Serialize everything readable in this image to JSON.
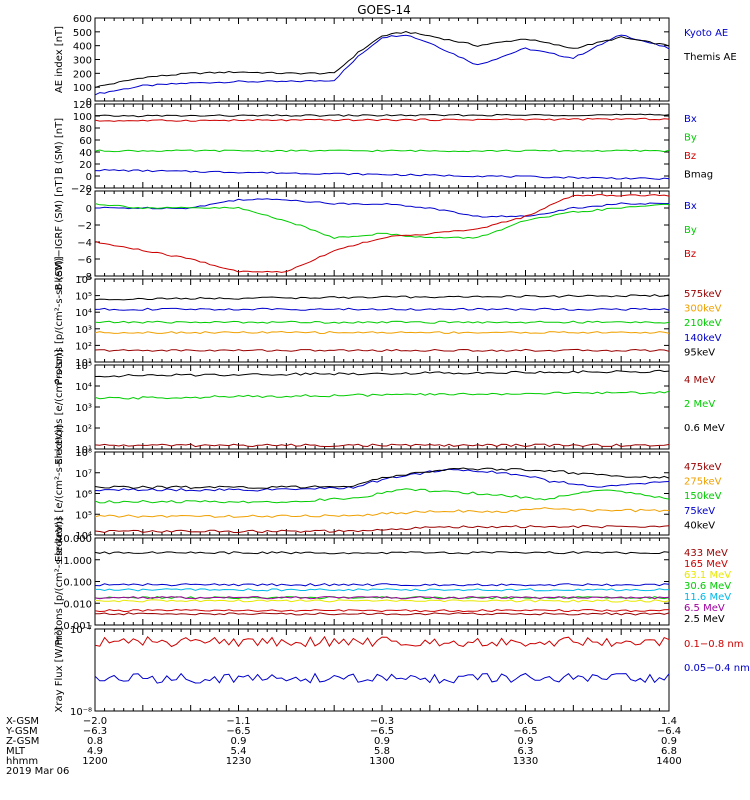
{
  "title": "GOES-14",
  "colors": {
    "black": "#000000",
    "blue": "#0000cc",
    "green": "#00cc00",
    "red": "#cc0000",
    "orange": "#f0a000",
    "yellow": "#e8e800",
    "cyan": "#00b8e8",
    "purple": "#a000a0",
    "darkred": "#990000"
  },
  "chart_data": [
    {
      "type": "line",
      "ylabel": "AE index [nT]",
      "ylim": [
        0,
        600
      ],
      "ytick_labels": [
        "600",
        "500",
        "400",
        "300",
        "200",
        "100",
        "0"
      ],
      "x": [
        0,
        10,
        20,
        30,
        40,
        50,
        55,
        60,
        65,
        70,
        80,
        90,
        100,
        110,
        120
      ],
      "series": [
        {
          "name": "Kyoto AE",
          "color": "blue",
          "values": [
            50,
            110,
            130,
            140,
            140,
            150,
            320,
            460,
            480,
            420,
            260,
            380,
            310,
            480,
            380
          ]
        },
        {
          "name": "Themis AE",
          "color": "black",
          "values": [
            100,
            170,
            200,
            210,
            200,
            200,
            350,
            470,
            500,
            470,
            400,
            450,
            380,
            460,
            400
          ]
        }
      ]
    },
    {
      "type": "line",
      "ylabel": "B (SM) [nT]",
      "ylim": [
        -20,
        120
      ],
      "ytick_labels": [
        "120",
        "100",
        "80",
        "60",
        "40",
        "20",
        "0",
        "−20"
      ],
      "x": [
        0,
        120
      ],
      "series": [
        {
          "name": "Bx",
          "color": "blue",
          "values": [
            10,
            -5
          ]
        },
        {
          "name": "By",
          "color": "green",
          "values": [
            42,
            42
          ]
        },
        {
          "name": "Bz",
          "color": "red",
          "values": [
            92,
            95
          ]
        },
        {
          "name": "Bmag",
          "color": "black",
          "values": [
            100,
            102
          ]
        }
      ]
    },
    {
      "type": "line",
      "ylabel": "B (SM)−IGRF (SM) [nT]",
      "ylim": [
        -8,
        2
      ],
      "ytick_labels": [
        "2",
        "0",
        "−2",
        "−4",
        "−6",
        "−8"
      ],
      "x": [
        0,
        10,
        20,
        30,
        40,
        50,
        60,
        70,
        80,
        90,
        100,
        110,
        120
      ],
      "series": [
        {
          "name": "Bx",
          "color": "blue",
          "values": [
            0,
            0,
            0,
            1,
            1,
            0.5,
            0.5,
            0,
            -1,
            -1,
            0,
            0.5,
            0.5
          ]
        },
        {
          "name": "By",
          "color": "green",
          "values": [
            0.5,
            0,
            0,
            0,
            -1.5,
            -3.5,
            -3,
            -3.5,
            -3.5,
            -1.5,
            -0.5,
            0,
            0.5
          ]
        },
        {
          "name": "Bz",
          "color": "red",
          "values": [
            -4,
            -5,
            -6,
            -7.5,
            -7.5,
            -5,
            -3.5,
            -3,
            -2.5,
            -1,
            1.5,
            1.5,
            1.5
          ]
        }
      ]
    },
    {
      "type": "line",
      "ylabel": "Protons [p/(cm²-s-sr-keV)]",
      "yscale": "log",
      "ylim": [
        10,
        1000000
      ],
      "ytick_labels": [
        "10⁶",
        "10⁵",
        "10⁴",
        "10³",
        "10²",
        "10¹"
      ],
      "x": [
        0,
        120
      ],
      "series": [
        {
          "name": "575keV",
          "color": "darkred",
          "values": [
            50,
            50
          ]
        },
        {
          "name": "300keV",
          "color": "orange",
          "values": [
            600,
            600
          ]
        },
        {
          "name": "210keV",
          "color": "green",
          "values": [
            2500,
            2500
          ]
        },
        {
          "name": "140keV",
          "color": "blue",
          "values": [
            15000,
            15000
          ]
        },
        {
          "name": "95keV",
          "color": "black",
          "values": [
            60000,
            100000
          ]
        }
      ]
    },
    {
      "type": "line",
      "ylabel": "Electrons [e/(cm²-s-sr)]",
      "yscale": "log",
      "ylim": [
        10,
        100000
      ],
      "ytick_labels": [
        "10⁵",
        "10⁴",
        "10³",
        "10²",
        "10¹"
      ],
      "x": [
        0,
        120
      ],
      "series": [
        {
          "name": "4 MeV",
          "color": "darkred",
          "values": [
            15,
            15
          ]
        },
        {
          "name": "2 MeV",
          "color": "green",
          "values": [
            2500,
            5000
          ]
        },
        {
          "name": "0.6 MeV",
          "color": "black",
          "values": [
            30000,
            50000
          ]
        }
      ]
    },
    {
      "type": "line",
      "ylabel": "Electrons [e/(cm²-s-sr-keV)]",
      "yscale": "log",
      "ylim": [
        10000,
        100000000
      ],
      "ytick_labels": [
        "10⁸",
        "10⁷",
        "10⁶",
        "10⁵",
        "10⁴"
      ],
      "x": [
        0,
        20,
        40,
        55,
        65,
        75,
        85,
        95,
        105,
        115,
        120
      ],
      "series": [
        {
          "name": "475keV",
          "color": "darkred",
          "values": [
            15000,
            15000,
            15000,
            15000,
            20000,
            25000,
            25000,
            25000,
            25000,
            25000,
            25000
          ]
        },
        {
          "name": "275keV",
          "color": "orange",
          "values": [
            80000,
            80000,
            80000,
            90000,
            120000,
            150000,
            120000,
            200000,
            150000,
            150000,
            150000
          ]
        },
        {
          "name": "150keV",
          "color": "green",
          "values": [
            400000,
            400000,
            400000,
            600000,
            1500000,
            1200000,
            800000,
            500000,
            1500000,
            800000,
            600000
          ]
        },
        {
          "name": "75keV",
          "color": "blue",
          "values": [
            1500000,
            1500000,
            1500000,
            2000000,
            7000000,
            15000000,
            10000000,
            4000000,
            2000000,
            3000000,
            4000000
          ]
        },
        {
          "name": "40keV",
          "color": "black",
          "values": [
            2000000,
            2000000,
            2000000,
            2500000,
            8000000,
            15000000,
            15000000,
            12000000,
            8000000,
            6000000,
            6000000
          ]
        }
      ]
    },
    {
      "type": "line",
      "ylabel": "Protons [p/(cm²-s-sr-keV)]",
      "yscale": "log",
      "ylim": [
        0.001,
        50
      ],
      "ytick_labels": [
        "10.000",
        "1.000",
        "0.100",
        "0.010",
        "0.001"
      ],
      "x": [
        0,
        120
      ],
      "series": [
        {
          "name": "433 MeV",
          "color": "darkred",
          "values": [
            0.004,
            0.004
          ]
        },
        {
          "name": "165 MeV",
          "color": "red",
          "values": [
            0.006,
            0.006
          ]
        },
        {
          "name": "63.1 MeV",
          "color": "yellow",
          "values": [
            0.02,
            0.02
          ]
        },
        {
          "name": "30.6 MeV",
          "color": "green",
          "values": [
            0.03,
            0.03
          ]
        },
        {
          "name": "11.6 MeV",
          "color": "cyan",
          "values": [
            0.08,
            0.08
          ]
        },
        {
          "name": "6.5 MeV",
          "color": "purple",
          "values": [
            0.03,
            0.03
          ]
        },
        {
          "name": "2.5 MeV",
          "color": "black",
          "values": [
            8,
            8
          ]
        }
      ],
      "extra_series": {
        "color": "blue",
        "values": [
          0.15,
          0.15
        ]
      }
    },
    {
      "type": "line",
      "ylabel": "Xray Flux [W/m²]",
      "yscale": "log",
      "ylim": [
        1e-08,
        1e-07
      ],
      "ytick_labels": [
        "10⁻⁷",
        "10⁻⁸"
      ],
      "x": [
        0,
        120
      ],
      "series": [
        {
          "name": "0.1−0.8 nm",
          "color": "red",
          "values": [
            7e-08,
            7e-08
          ]
        },
        {
          "name": "0.05−0.4 nm",
          "color": "blue",
          "values": [
            2.5e-08,
            2.5e-08
          ]
        }
      ]
    }
  ],
  "xaxis": {
    "row_labels": [
      "X-GSM",
      "Y-GSM",
      "Z-GSM",
      "MLT",
      "hhmm"
    ],
    "date": "2019 Mar 06",
    "columns": [
      {
        "minute": 0,
        "values": [
          "−2.0",
          "−6.3",
          "0.8",
          "4.9",
          "1200"
        ]
      },
      {
        "minute": 30,
        "values": [
          "−1.1",
          "−6.5",
          "0.9",
          "5.4",
          "1230"
        ]
      },
      {
        "minute": 60,
        "values": [
          "−0.3",
          "−6.5",
          "0.9",
          "5.8",
          "1300"
        ]
      },
      {
        "minute": 90,
        "values": [
          "0.6",
          "−6.5",
          "0.9",
          "6.3",
          "1330"
        ]
      },
      {
        "minute": 120,
        "values": [
          "1.4",
          "−6.4",
          "0.9",
          "6.8",
          "1400"
        ]
      }
    ]
  }
}
